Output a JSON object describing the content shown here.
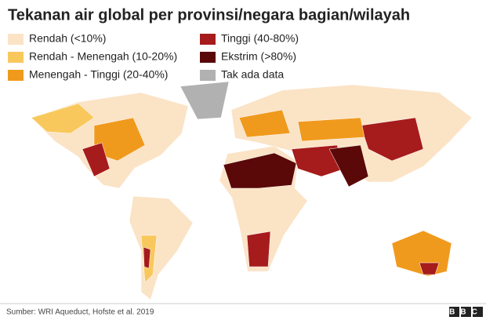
{
  "title": "Tekanan air global per provinsi/negara bagian/wilayah",
  "legend": {
    "items": [
      {
        "label": "Rendah (<10%)",
        "color": "#fbe3c6"
      },
      {
        "label": "Rendah - Menengah (10-20%)",
        "color": "#f9c85c"
      },
      {
        "label": "Menengah - Tinggi (20-40%)",
        "color": "#f09a1d"
      },
      {
        "label": "Tinggi (40-80%)",
        "color": "#a61b1b"
      },
      {
        "label": "Ekstrim (>80%)",
        "color": "#5a0808"
      },
      {
        "label": "Tak ada data",
        "color": "#b1b1b1"
      }
    ]
  },
  "footer": {
    "source": "Sumber: WRI Aqueduct, Hofste et al. 2019",
    "logo": "BBC"
  }
}
